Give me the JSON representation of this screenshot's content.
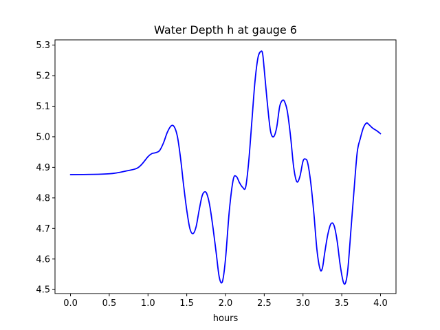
{
  "chart_data": {
    "type": "line",
    "title": "Water Depth h at gauge 6",
    "xlabel": "hours",
    "ylabel": "",
    "xlim": [
      -0.2,
      4.2
    ],
    "ylim": [
      4.487,
      5.317
    ],
    "xticks": [
      0.0,
      0.5,
      1.0,
      1.5,
      2.0,
      2.5,
      3.0,
      3.5,
      4.0
    ],
    "xtick_labels": [
      "0.0",
      "0.5",
      "1.0",
      "1.5",
      "2.0",
      "2.5",
      "3.0",
      "3.5",
      "4.0"
    ],
    "yticks": [
      4.5,
      4.6,
      4.7,
      4.8,
      4.9,
      5.0,
      5.1,
      5.2,
      5.3
    ],
    "ytick_labels": [
      "4.5",
      "4.6",
      "4.7",
      "4.8",
      "4.9",
      "5.0",
      "5.1",
      "5.2",
      "5.3"
    ],
    "grid": false,
    "series": [
      {
        "color": "#0000ff",
        "x": [
          0.0,
          0.3,
          0.5,
          0.6,
          0.7,
          0.85,
          0.92,
          1.0,
          1.05,
          1.1,
          1.15,
          1.2,
          1.25,
          1.3,
          1.34,
          1.38,
          1.42,
          1.46,
          1.5,
          1.54,
          1.58,
          1.62,
          1.66,
          1.7,
          1.74,
          1.77,
          1.8,
          1.84,
          1.88,
          1.92,
          1.96,
          2.0,
          2.05,
          2.1,
          2.14,
          2.18,
          2.22,
          2.26,
          2.3,
          2.34,
          2.38,
          2.42,
          2.46,
          2.48,
          2.5,
          2.54,
          2.58,
          2.62,
          2.66,
          2.7,
          2.74,
          2.77,
          2.8,
          2.84,
          2.88,
          2.92,
          2.96,
          3.0,
          3.03,
          3.06,
          3.1,
          3.14,
          3.18,
          3.22,
          3.25,
          3.28,
          3.32,
          3.36,
          3.4,
          3.44,
          3.48,
          3.52,
          3.55,
          3.58,
          3.62,
          3.66,
          3.7,
          3.74,
          3.78,
          3.82,
          3.85,
          3.9,
          3.95,
          4.0
        ],
        "y": [
          4.876,
          4.877,
          4.879,
          4.882,
          4.887,
          4.896,
          4.91,
          4.935,
          4.945,
          4.948,
          4.955,
          4.98,
          5.015,
          5.036,
          5.032,
          5.0,
          4.93,
          4.84,
          4.76,
          4.7,
          4.683,
          4.705,
          4.76,
          4.808,
          4.82,
          4.805,
          4.77,
          4.7,
          4.62,
          4.54,
          4.526,
          4.6,
          4.76,
          4.86,
          4.87,
          4.85,
          4.835,
          4.835,
          4.92,
          5.05,
          5.18,
          5.26,
          5.28,
          5.27,
          5.22,
          5.11,
          5.02,
          5.0,
          5.03,
          5.1,
          5.12,
          5.11,
          5.08,
          5.0,
          4.9,
          4.853,
          4.87,
          4.92,
          4.927,
          4.915,
          4.85,
          4.75,
          4.63,
          4.567,
          4.57,
          4.62,
          4.68,
          4.715,
          4.71,
          4.66,
          4.58,
          4.525,
          4.523,
          4.57,
          4.7,
          4.83,
          4.95,
          4.995,
          5.03,
          5.045,
          5.04,
          5.028,
          5.02,
          5.01
        ]
      }
    ]
  }
}
